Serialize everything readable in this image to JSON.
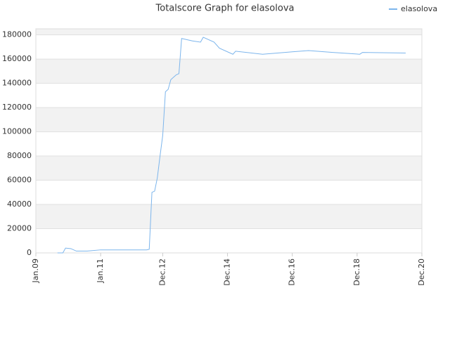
{
  "chart_data": {
    "type": "line",
    "title": "Totalscore Graph for elasolova",
    "x": [
      "2009-09",
      "2009-11",
      "2009-12",
      "2010-02",
      "2010-04",
      "2010-08",
      "2011-01",
      "2012-06",
      "2012-07",
      "2012-08",
      "2012-09",
      "2012-10",
      "2012-11",
      "2012-12",
      "2013-01",
      "2013-02",
      "2013-03",
      "2013-05",
      "2013-06",
      "2013-07",
      "2013-11",
      "2014-02",
      "2014-03",
      "2014-07",
      "2014-09",
      "2015-02",
      "2015-03",
      "2016-01",
      "2016-12",
      "2017-06",
      "2018-03",
      "2019-01",
      "2019-02",
      "2020-06"
    ],
    "series": [
      {
        "name": "elasolova",
        "color": "#7cb5ec",
        "values": [
          0,
          0,
          4000,
          3500,
          1500,
          1500,
          2500,
          2500,
          3000,
          50000,
          51000,
          62000,
          80000,
          97000,
          133000,
          135000,
          143000,
          147000,
          148000,
          177000,
          175000,
          174000,
          178000,
          174000,
          169000,
          164000,
          166500,
          164000,
          166000,
          167000,
          165500,
          164000,
          165500,
          165000
        ]
      }
    ],
    "xlim": [
      "2009-01",
      "2020-12"
    ],
    "xticks": [
      {
        "value": "2009-01",
        "label": "Jan.09"
      },
      {
        "value": "2011-01",
        "label": "Jan.11"
      },
      {
        "value": "2012-12",
        "label": "Dec.12"
      },
      {
        "value": "2014-12",
        "label": "Dec.14"
      },
      {
        "value": "2016-12",
        "label": "Dec.16"
      },
      {
        "value": "2018-12",
        "label": "Dec.18"
      },
      {
        "value": "2020-12",
        "label": "Dec.20"
      }
    ],
    "ylim": [
      0,
      185000
    ],
    "yticks": [
      0,
      20000,
      40000,
      60000,
      80000,
      100000,
      120000,
      140000,
      160000,
      180000
    ],
    "grid": true,
    "legend": "top-right"
  }
}
